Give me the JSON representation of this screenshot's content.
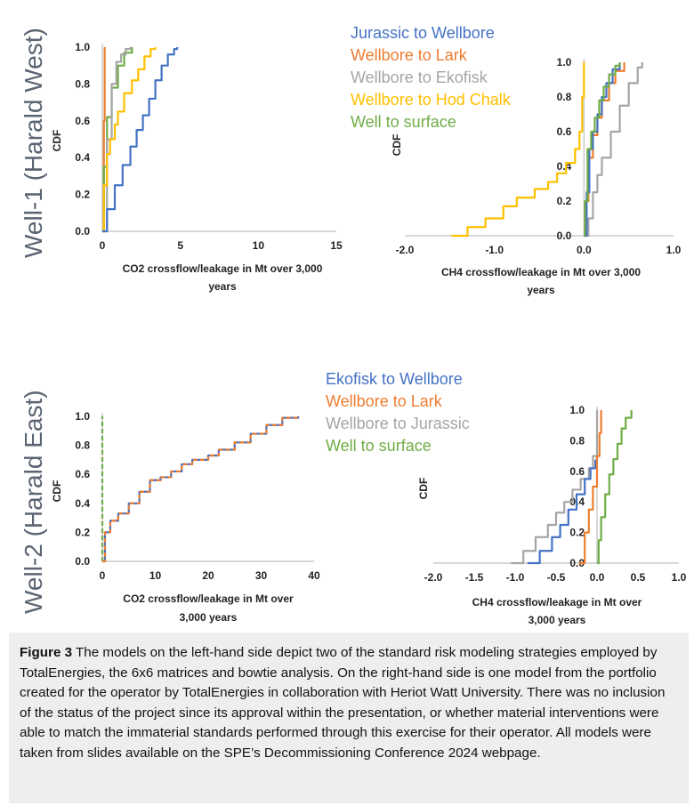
{
  "row_labels": [
    "Well-1 (Harald West)",
    "Well-2 (Harald East)"
  ],
  "legend_top": [
    {
      "label": "Jurassic to Wellbore",
      "color": "#4472c4"
    },
    {
      "label": "Wellbore to Lark",
      "color": "#ed7d31"
    },
    {
      "label": "Wellbore to Ekofisk",
      "color": "#a5a5a5"
    },
    {
      "label": "Wellbore to Hod Chalk",
      "color": "#ffc000"
    },
    {
      "label": "Well to surface",
      "color": "#70ad47"
    }
  ],
  "legend_bottom": [
    {
      "label": "Ekofisk to Wellbore",
      "color": "#4472c4"
    },
    {
      "label": "Wellbore to Lark",
      "color": "#ed7d31"
    },
    {
      "label": "Wellbore to Jurassic",
      "color": "#a5a5a5"
    },
    {
      "label": "Well to surface",
      "color": "#70ad47"
    }
  ],
  "caption": {
    "label": "Figure 3",
    "text": " The models on the left-hand side depict two of the standard risk modeling strategies employed by TotalEnergies, the 6x6 matrices and bowtie analysis. On the right-hand side is one model from the portfolio created for the operator by TotalEnergies in collaboration with Heriot Watt University. There was no inclusion of the status of the project since its approval within the presentation, or whether material interventions were able to match the immaterial standards performed through this exercise for their operator. All models were taken from slides available on the SPE’s Decommissioning Conference 2024 webpage."
  },
  "chart_data": [
    {
      "id": "w1_co2",
      "type": "line",
      "title": "",
      "xlabel": [
        "CO2 crossflow/leakage in Mt over 3,000",
        "years"
      ],
      "ylabel": "CDF",
      "xlim": [
        0,
        15
      ],
      "ylim": [
        0,
        1.0
      ],
      "xticks": [
        0,
        5,
        10,
        15
      ],
      "xtick_labels": [
        "0",
        "5",
        "10",
        "15"
      ],
      "yticks": [
        0,
        0.2,
        0.4,
        0.6,
        0.8,
        1.0
      ],
      "ytick_labels": [
        "0.0",
        "0.2",
        "0.4",
        "0.6",
        "0.8",
        "1.0"
      ],
      "series": [
        {
          "name": "Wellbore to Lark",
          "color": "#ed7d31",
          "x": [
            0.05,
            0.1,
            0.15
          ],
          "y": [
            0,
            0.6,
            1.0
          ]
        },
        {
          "name": "Well to surface",
          "color": "#70ad47",
          "x": [
            0,
            0.1,
            0.3,
            0.6,
            1.0,
            1.4,
            1.9
          ],
          "y": [
            0,
            0.35,
            0.62,
            0.78,
            0.9,
            0.97,
            1.0
          ]
        },
        {
          "name": "Wellbore to Ekofisk",
          "color": "#a5a5a5",
          "x": [
            0,
            0.3,
            0.6,
            0.9,
            1.2,
            1.5,
            1.8
          ],
          "y": [
            0,
            0.5,
            0.8,
            0.92,
            0.96,
            0.99,
            1.0
          ]
        },
        {
          "name": "Wellbore to Hod Chalk",
          "color": "#ffc000",
          "x": [
            0,
            0.1,
            0.3,
            0.5,
            0.8,
            1.0,
            1.4,
            1.9,
            2.3,
            2.7,
            3.1,
            3.4
          ],
          "y": [
            0,
            0.25,
            0.42,
            0.5,
            0.58,
            0.65,
            0.75,
            0.82,
            0.88,
            0.95,
            0.99,
            1.0
          ]
        },
        {
          "name": "Jurassic to Wellbore",
          "color": "#4472c4",
          "x": [
            0,
            0.3,
            0.8,
            1.3,
            1.8,
            2.2,
            2.6,
            3.0,
            3.4,
            3.8,
            4.2,
            4.6,
            4.8
          ],
          "y": [
            0,
            0.12,
            0.25,
            0.36,
            0.46,
            0.55,
            0.63,
            0.72,
            0.82,
            0.9,
            0.96,
            0.99,
            1.0
          ]
        }
      ]
    },
    {
      "id": "w1_ch4",
      "type": "line",
      "title": "",
      "xlabel": [
        "CH4 crossflow/leakage in Mt over 3,000",
        "years"
      ],
      "ylabel": "CDF",
      "xlim": [
        -2.0,
        1.0
      ],
      "ylim": [
        0,
        1.0
      ],
      "xticks": [
        -2,
        -1,
        0,
        1
      ],
      "xtick_labels": [
        "-2.0",
        "-1.0",
        "0.0",
        "1.0"
      ],
      "yticks": [
        0,
        0.2,
        0.4,
        0.6,
        0.8,
        1.0
      ],
      "ytick_labels": [
        "0.0",
        "0.2",
        "0.4",
        "0.6",
        "0.8",
        "1.0"
      ],
      "series": [
        {
          "name": "Wellbore to Hod Chalk",
          "color": "#ffc000",
          "x": [
            -1.48,
            -1.3,
            -1.1,
            -0.9,
            -0.75,
            -0.55,
            -0.4,
            -0.3,
            -0.2,
            -0.1,
            -0.05,
            -0.02,
            0
          ],
          "y": [
            0,
            0.05,
            0.1,
            0.17,
            0.22,
            0.27,
            0.31,
            0.36,
            0.42,
            0.5,
            0.6,
            0.8,
            1.0
          ]
        },
        {
          "name": "Wellbore to Ekofisk",
          "color": "#a5a5a5",
          "x": [
            0,
            0.05,
            0.1,
            0.15,
            0.2,
            0.3,
            0.4,
            0.5,
            0.6,
            0.65
          ],
          "y": [
            0,
            0.1,
            0.25,
            0.35,
            0.45,
            0.6,
            0.75,
            0.88,
            0.97,
            1.0
          ]
        },
        {
          "name": "Wellbore to Lark",
          "color": "#ed7d31",
          "x": [
            0,
            0.02,
            0.05,
            0.1,
            0.15,
            0.2,
            0.28,
            0.35,
            0.45
          ],
          "y": [
            0,
            0.2,
            0.45,
            0.58,
            0.68,
            0.78,
            0.88,
            0.95,
            1.0
          ]
        },
        {
          "name": "Jurassic to Wellbore",
          "color": "#4472c4",
          "x": [
            0,
            0.03,
            0.06,
            0.1,
            0.15,
            0.2,
            0.25,
            0.32,
            0.4
          ],
          "y": [
            0,
            0.25,
            0.5,
            0.6,
            0.7,
            0.8,
            0.88,
            0.96,
            1.0
          ]
        },
        {
          "name": "Well to surface",
          "color": "#70ad47",
          "x": [
            0,
            0.01,
            0.04,
            0.08,
            0.12,
            0.17,
            0.22,
            0.28,
            0.35,
            0.4
          ],
          "y": [
            0,
            0.2,
            0.5,
            0.6,
            0.68,
            0.78,
            0.86,
            0.93,
            0.98,
            1.0
          ]
        }
      ]
    },
    {
      "id": "w2_co2",
      "type": "line",
      "title": "",
      "xlabel": [
        "CO2 crossflow/leakage in Mt over",
        "3,000 years"
      ],
      "ylabel": "CDF",
      "xlim": [
        0,
        40
      ],
      "ylim": [
        0,
        1.0
      ],
      "xticks": [
        0,
        10,
        20,
        30,
        40
      ],
      "xtick_labels": [
        "0",
        "10",
        "20",
        "30",
        "40"
      ],
      "yticks": [
        0,
        0.2,
        0.4,
        0.6,
        0.8,
        1.0
      ],
      "ytick_labels": [
        "0.0",
        "0.2",
        "0.4",
        "0.6",
        "0.8",
        "1.0"
      ],
      "series": [
        {
          "name": "Well to surface",
          "color": "#70ad47",
          "dashed": true,
          "x": [
            0,
            0
          ],
          "y": [
            0,
            1.0
          ]
        },
        {
          "name": "Ekofisk to Wellbore",
          "color": "#4472c4",
          "x": [
            0,
            0.5,
            1.5,
            3,
            5,
            7,
            9,
            11,
            13,
            15,
            17,
            20,
            22,
            25,
            28,
            31,
            34,
            37
          ],
          "y": [
            0,
            0.2,
            0.28,
            0.33,
            0.4,
            0.48,
            0.56,
            0.58,
            0.62,
            0.67,
            0.7,
            0.73,
            0.77,
            0.82,
            0.88,
            0.94,
            0.99,
            1.0
          ]
        },
        {
          "name": "Wellbore to Lark",
          "color": "#ed7d31",
          "dashed": true,
          "x": [
            0,
            0.5,
            1.5,
            3,
            5,
            7,
            9,
            11,
            13,
            15,
            17,
            20,
            22,
            25,
            28,
            31,
            34,
            37
          ],
          "y": [
            0,
            0.2,
            0.28,
            0.33,
            0.4,
            0.48,
            0.56,
            0.58,
            0.62,
            0.67,
            0.7,
            0.73,
            0.77,
            0.82,
            0.88,
            0.94,
            0.99,
            1.0
          ]
        }
      ]
    },
    {
      "id": "w2_ch4",
      "type": "line",
      "title": "",
      "xlabel": [
        "CH4 crossflow/leakage in Mt over",
        "3,000 years"
      ],
      "ylabel": "CDF",
      "xlim": [
        -2.0,
        1.0
      ],
      "ylim": [
        0,
        1.0
      ],
      "xticks": [
        -2,
        -1.5,
        -1,
        -0.5,
        0,
        0.5,
        1
      ],
      "xtick_labels": [
        "-2.0",
        "-1.5",
        "-1.0",
        "-0.5",
        "0.0",
        "0.5",
        "1.0"
      ],
      "yticks": [
        0,
        0.2,
        0.4,
        0.6,
        0.8,
        1.0
      ],
      "ytick_labels": [
        "0.0",
        "0.2",
        "0.4",
        "0.6",
        "0.8",
        "1.0"
      ],
      "series": [
        {
          "name": "Wellbore to Jurassic",
          "color": "#a5a5a5",
          "x": [
            -1.05,
            -0.9,
            -0.75,
            -0.6,
            -0.5,
            -0.4,
            -0.3,
            -0.2,
            -0.1,
            -0.05,
            0
          ],
          "y": [
            0,
            0.08,
            0.17,
            0.25,
            0.33,
            0.4,
            0.48,
            0.55,
            0.62,
            0.7,
            1.0
          ]
        },
        {
          "name": "Ekofisk to Wellbore",
          "color": "#4472c4",
          "x": [
            -0.85,
            -0.7,
            -0.55,
            -0.45,
            -0.35,
            -0.25,
            -0.15,
            -0.08,
            -0.02,
            0
          ],
          "y": [
            0,
            0.08,
            0.17,
            0.25,
            0.35,
            0.45,
            0.55,
            0.62,
            0.67,
            0.7
          ]
        },
        {
          "name": "Wellbore to Lark",
          "color": "#ed7d31",
          "x": [
            -0.22,
            -0.15,
            -0.1,
            -0.05,
            0,
            0.03,
            0.05
          ],
          "y": [
            0,
            0.2,
            0.35,
            0.5,
            0.7,
            0.85,
            1.0
          ]
        },
        {
          "name": "Well to surface",
          "color": "#70ad47",
          "x": [
            0,
            0.02,
            0.05,
            0.1,
            0.15,
            0.2,
            0.25,
            0.3,
            0.35,
            0.42
          ],
          "y": [
            0,
            0.15,
            0.3,
            0.45,
            0.58,
            0.68,
            0.78,
            0.88,
            0.95,
            1.0
          ]
        }
      ]
    }
  ]
}
